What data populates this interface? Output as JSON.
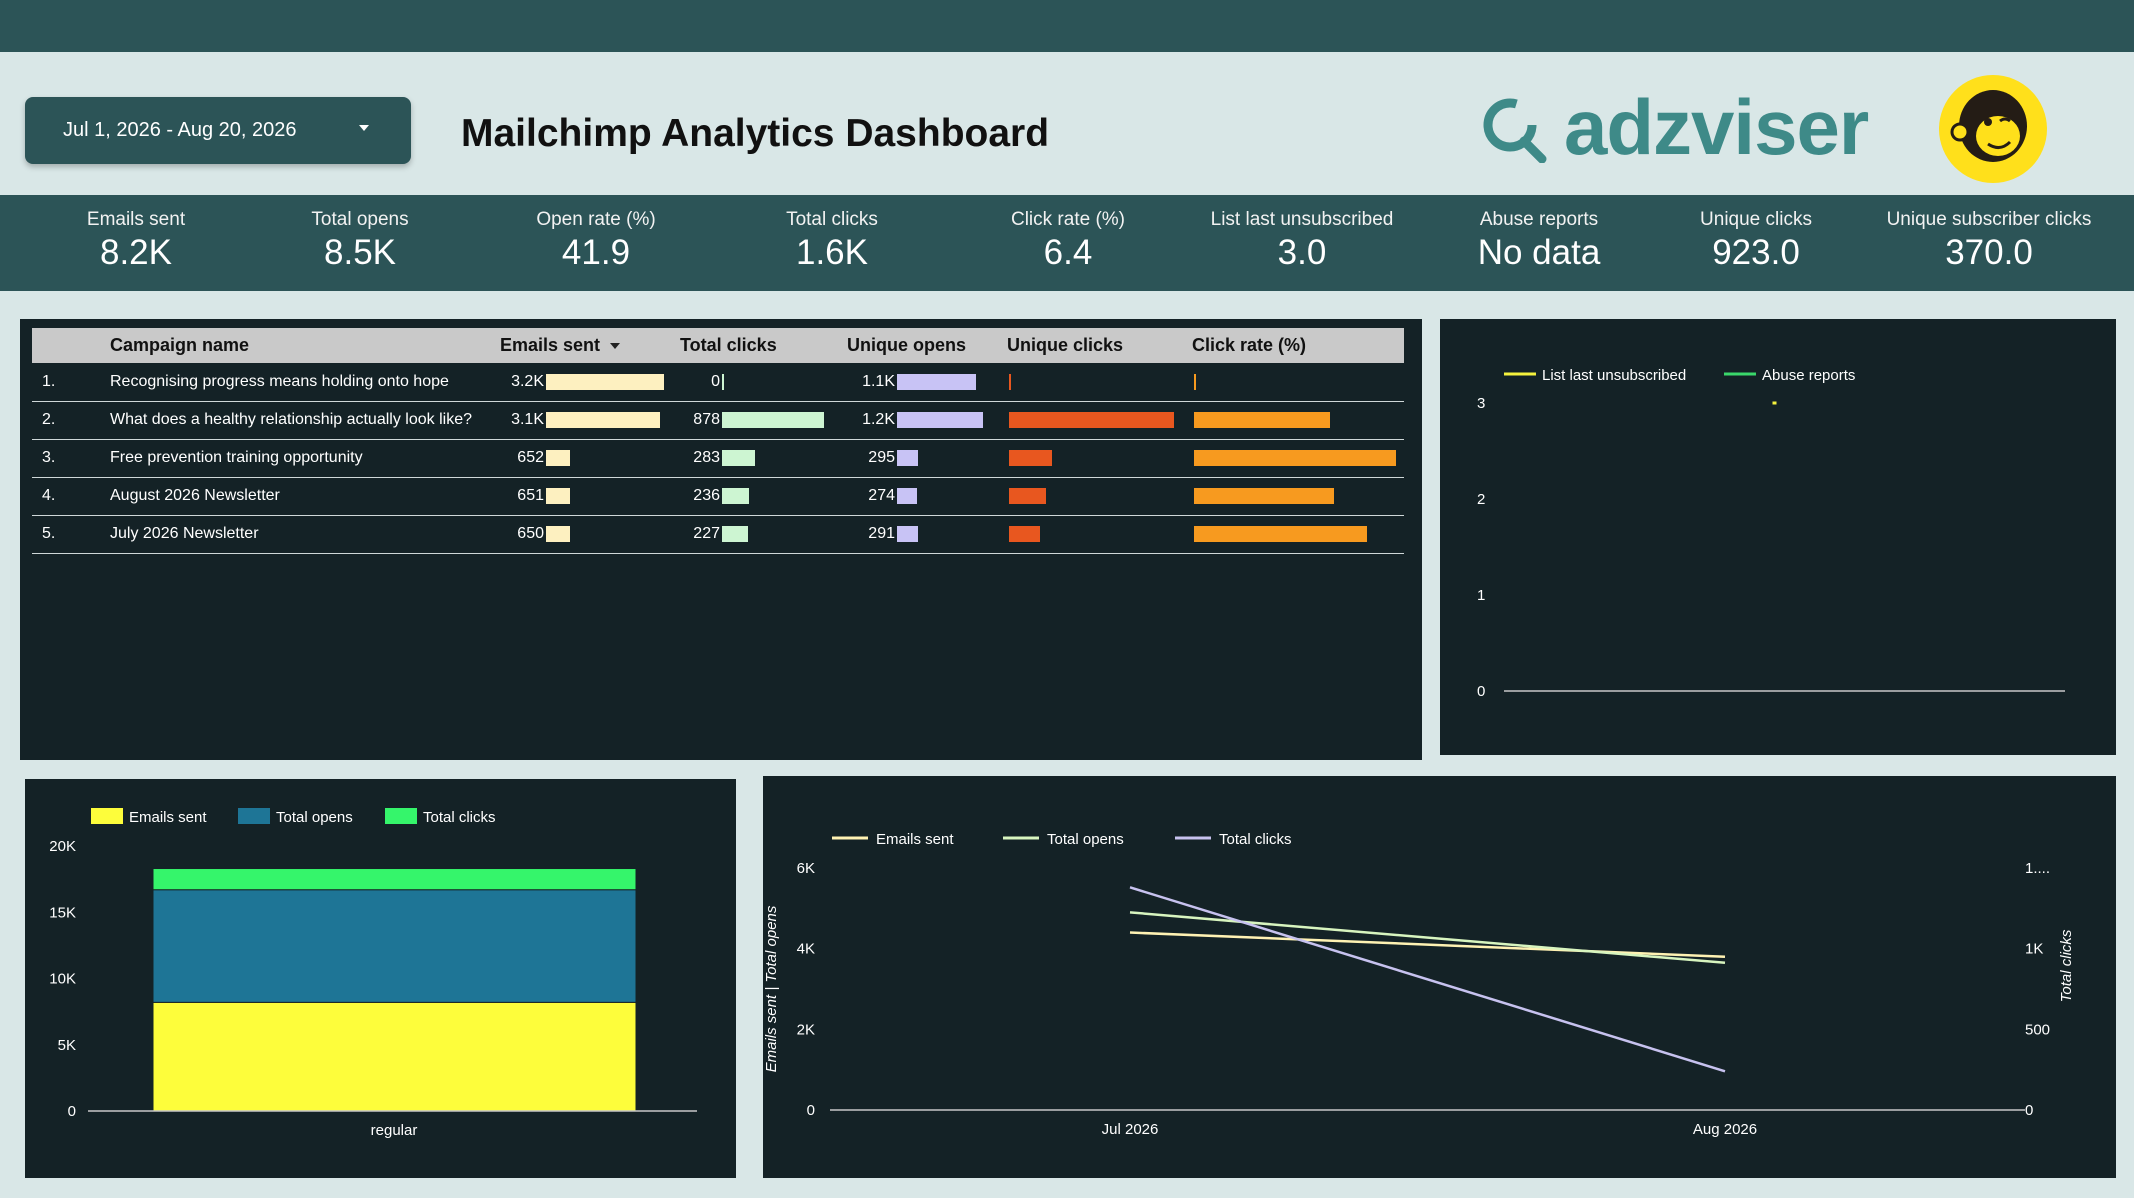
{
  "header": {
    "date_range": "Jul 1, 2026 - Aug 20, 2026",
    "title": "Mailchimp Analytics Dashboard",
    "brand": "adzviser"
  },
  "kpis": [
    {
      "label": "Emails sent",
      "value": "8.2K"
    },
    {
      "label": "Total opens",
      "value": "8.5K"
    },
    {
      "label": "Open rate (%)",
      "value": "41.9"
    },
    {
      "label": "Total clicks",
      "value": "1.6K"
    },
    {
      "label": "Click rate (%)",
      "value": "6.4"
    },
    {
      "label": "List last unsubscribed",
      "value": "3.0"
    },
    {
      "label": "Abuse reports",
      "value": "No data"
    },
    {
      "label": "Unique clicks",
      "value": "923.0"
    },
    {
      "label": "Unique subscriber clicks",
      "value": "370.0"
    }
  ],
  "table": {
    "headers": [
      "Campaign name",
      "Emails sent",
      "Total clicks",
      "Unique opens",
      "Unique clicks",
      "Click rate (%)"
    ],
    "rows": [
      {
        "idx": "1.",
        "name": "Recognising progress means holding onto hope",
        "emails_sent": "3.2K",
        "emails_sent_v": 3200,
        "total_clicks": "0",
        "total_clicks_v": 0,
        "unique_opens": "1.1K",
        "unique_opens_v": 1100,
        "unique_clicks_v": 0,
        "click_rate_v": 0
      },
      {
        "idx": "2.",
        "name": "What does a healthy relationship actually look like?",
        "emails_sent": "3.1K",
        "emails_sent_v": 3100,
        "total_clicks": "878",
        "total_clicks_v": 878,
        "unique_opens": "1.2K",
        "unique_opens_v": 1200,
        "unique_clicks_v": 488,
        "click_rate_v": 15.7
      },
      {
        "idx": "3.",
        "name": "Free prevention training opportunity",
        "emails_sent": "652",
        "emails_sent_v": 652,
        "total_clicks": "283",
        "total_clicks_v": 283,
        "unique_opens": "295",
        "unique_opens_v": 295,
        "unique_clicks_v": 128,
        "click_rate_v": 23.3
      },
      {
        "idx": "4.",
        "name": "August 2026 Newsletter",
        "emails_sent": "651",
        "emails_sent_v": 651,
        "total_clicks": "236",
        "total_clicks_v": 236,
        "unique_opens": "274",
        "unique_opens_v": 274,
        "unique_clicks_v": 108,
        "click_rate_v": 16.1
      },
      {
        "idx": "5.",
        "name": "July 2026 Newsletter",
        "emails_sent": "650",
        "emails_sent_v": 650,
        "total_clicks": "227",
        "total_clicks_v": 227,
        "unique_opens": "291",
        "unique_opens_v": 291,
        "unique_clicks_v": 92,
        "click_rate_v": 19.9
      }
    ]
  },
  "colors": {
    "emails_bar": "#fdf0c0",
    "clicks_bar": "#cdf5d2",
    "opens_bar": "#c8c3f5",
    "unique_clicks_bar": "#e8571f",
    "click_rate_bar": "#f79a1f",
    "yellow": "#fdfd3b",
    "blue": "#1e7596",
    "green": "#35f56b",
    "line_emails": "#fff2b3",
    "line_opens": "#d8f5bf",
    "line_clicks": "#c7c2ef",
    "unsub_line": "#f5f23d",
    "abuse_line": "#3ad86b"
  },
  "chart_data": [
    {
      "type": "line",
      "legend": [
        "List last unsubscribed",
        "Abuse reports"
      ],
      "series": [
        {
          "name": "List last unsubscribed",
          "values": [
            3
          ]
        },
        {
          "name": "Abuse reports",
          "values": []
        }
      ],
      "yticks": [
        "0",
        "1",
        "2",
        "3"
      ],
      "ylim": [
        0,
        3
      ],
      "legend_position": "top-left"
    },
    {
      "type": "bar",
      "stacked": true,
      "categories": [
        "regular"
      ],
      "series": [
        {
          "name": "Emails sent",
          "values": [
            8200
          ]
        },
        {
          "name": "Total opens",
          "values": [
            8500
          ]
        },
        {
          "name": "Total clicks",
          "values": [
            1600
          ]
        }
      ],
      "yticks": [
        "0",
        "5K",
        "10K",
        "15K",
        "20K"
      ],
      "ylim": [
        0,
        20000
      ],
      "legend_position": "top-left"
    },
    {
      "type": "line",
      "x": [
        "Jul 2026",
        "Aug 2026"
      ],
      "series": [
        {
          "name": "Emails sent",
          "axis": "left",
          "values": [
            4400,
            3800
          ]
        },
        {
          "name": "Total opens",
          "axis": "left",
          "values": [
            4900,
            3650
          ]
        },
        {
          "name": "Total clicks",
          "axis": "right",
          "values": [
            1380,
            240
          ]
        }
      ],
      "ylabel_left": "Emails sent | Total opens",
      "ylabel_right": "Total clicks",
      "yticks_left": [
        "0",
        "2K",
        "4K",
        "6K"
      ],
      "yticks_right": [
        "0",
        "500",
        "1K",
        "1...."
      ],
      "ylim_left": [
        0,
        6000
      ],
      "ylim_right": [
        0,
        1500
      ],
      "legend_position": "top-left"
    }
  ]
}
